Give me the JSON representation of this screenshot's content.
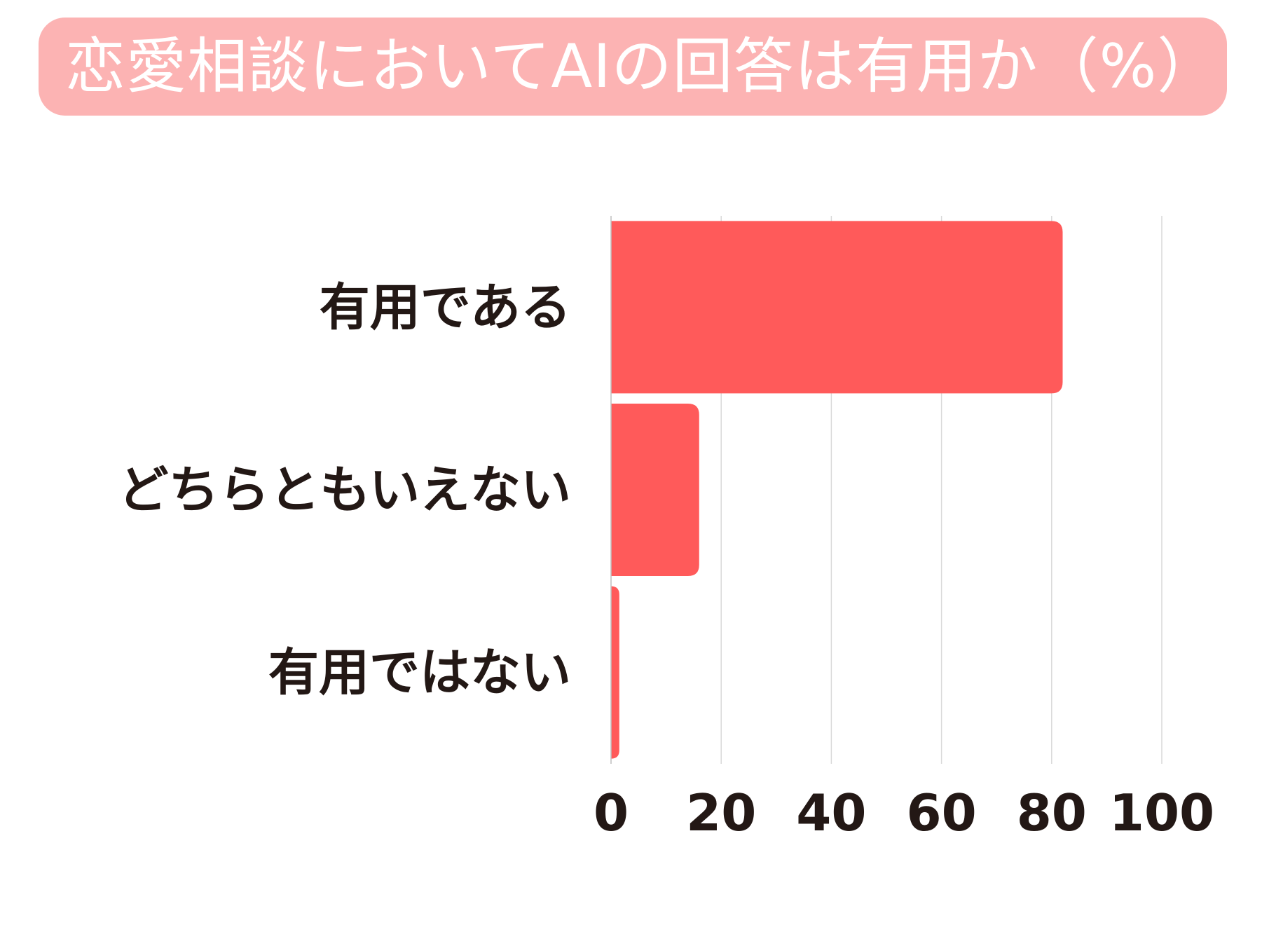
{
  "chart_data": {
    "type": "bar",
    "orientation": "horizontal",
    "title": "恋愛相談においてAIの回答は有用か（%）",
    "categories": [
      "有用である",
      "どちらともいえない",
      "有用ではない"
    ],
    "values": [
      82,
      16,
      1.5
    ],
    "xlim": [
      0,
      100
    ],
    "x_ticks": [
      "0",
      "20",
      "40",
      "60",
      "80",
      "100"
    ],
    "x_tick_values": [
      0,
      20,
      40,
      60,
      80,
      100
    ],
    "grid": true,
    "legend": "none",
    "xlabel": "",
    "ylabel": ""
  },
  "colors": {
    "bar": "#ff5a5a",
    "title_background": "#fcb3b3",
    "title_text": "#ffffff",
    "label_text": "#231815",
    "gridline": "#d9d9d9",
    "axis_line": "#bfbfbf"
  }
}
